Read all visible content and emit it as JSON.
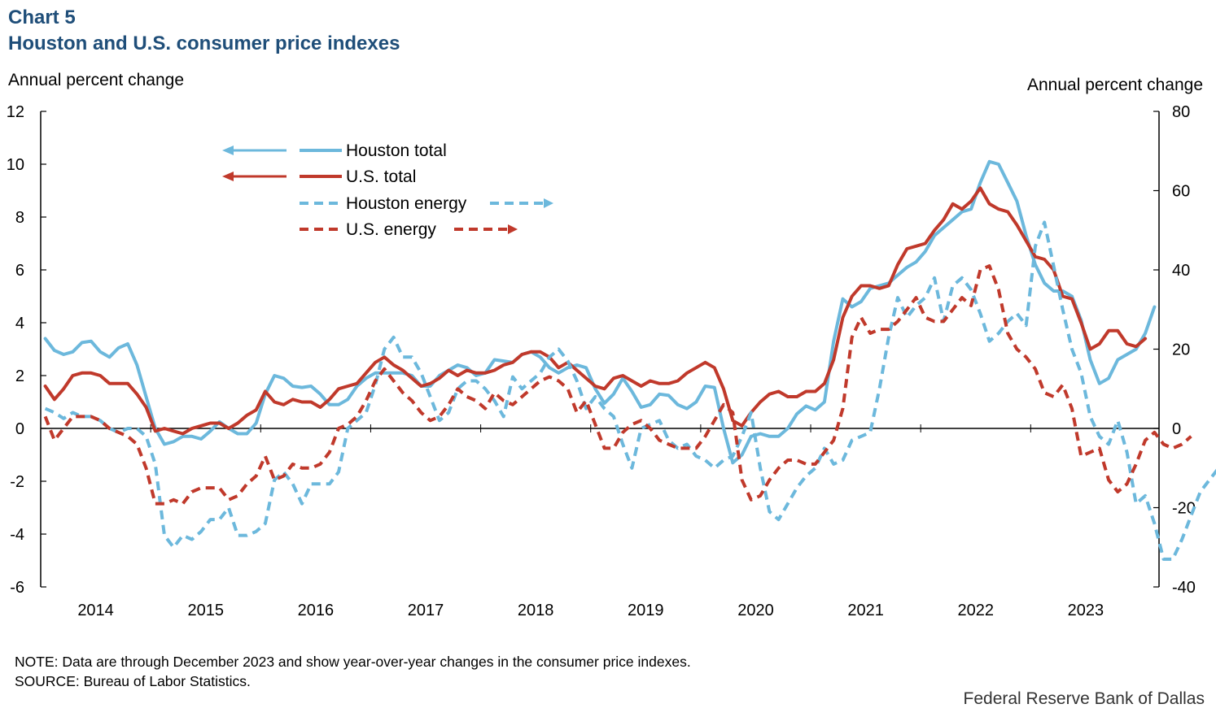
{
  "chart_number": "Chart 5",
  "title": "Houston and U.S. consumer price indexes",
  "left_axis_title": "Annual percent change",
  "right_axis_title": "Annual percent change",
  "note": "NOTE: Data are through December 2023 and show year-over-year changes in the consumer price indexes.",
  "source": "SOURCE: Bureau of Labor Statistics.",
  "brand": "Federal Reserve Bank of Dallas",
  "colors": {
    "houston": "#6cb8dc",
    "us": "#c0392b",
    "axis": "#000000"
  },
  "chart_data": {
    "type": "line",
    "x_start": "2014-01",
    "x_end": "2023-12",
    "x_labels": [
      "2014",
      "2015",
      "2016",
      "2017",
      "2018",
      "2019",
      "2020",
      "2021",
      "2022",
      "2023"
    ],
    "left_axis": {
      "ylim": [
        -6,
        12
      ],
      "ticks": [
        "12",
        "10",
        "8",
        "6",
        "4",
        "2",
        "0",
        "-2",
        "-4",
        "-6"
      ]
    },
    "right_axis": {
      "ylim": [
        -40,
        80
      ],
      "ticks": [
        "80",
        "60",
        "40",
        "20",
        "0",
        "-20",
        "-40"
      ]
    },
    "legend": [
      {
        "label": "Houston total",
        "arrow": "left"
      },
      {
        "label": "U.S. total",
        "arrow": "left"
      },
      {
        "label": "Houston energy",
        "arrow": "right"
      },
      {
        "label": "U.S. energy",
        "arrow": "right"
      }
    ],
    "series": [
      {
        "name": "Houston total",
        "axis": "left",
        "style": "solid",
        "color": "houston",
        "values": [
          3.4,
          2.95,
          2.8,
          2.9,
          3.25,
          3.3,
          2.9,
          2.7,
          3.05,
          3.2,
          2.4,
          1.2,
          0,
          -0.6,
          -0.5,
          -0.3,
          -0.3,
          -0.4,
          -0.1,
          0.25,
          0,
          -0.2,
          -0.2,
          0.2,
          1.3,
          2.0,
          1.9,
          1.6,
          1.55,
          1.6,
          1.3,
          0.9,
          0.9,
          1.1,
          1.6,
          1.9,
          2.1,
          2.1,
          2.1,
          2.1,
          2.0,
          1.6,
          1.6,
          2.0,
          2.2,
          2.4,
          2.3,
          2.0,
          2.1,
          2.6,
          2.55,
          2.5,
          2.8,
          2.9,
          2.7,
          2.3,
          2.1,
          2.3,
          2.4,
          2.3,
          1.5,
          0.95,
          1.3,
          1.9,
          1.4,
          0.8,
          0.9,
          1.3,
          1.25,
          0.9,
          0.75,
          1.0,
          1.6,
          1.55,
          0,
          -1.3,
          -1.0,
          -0.3,
          -0.2,
          -0.3,
          -0.3,
          0,
          0.55,
          0.85,
          0.7,
          1.0,
          3.3,
          4.9,
          4.6,
          4.8,
          5.3,
          5.4,
          5.5,
          5.8,
          6.1,
          6.3,
          6.7,
          7.3,
          7.6,
          7.9,
          8.2,
          8.3,
          9.3,
          10.1,
          10.0,
          9.3,
          8.6,
          7.3,
          6.2,
          5.5,
          5.2,
          5.2,
          5.0,
          4.1,
          2.6,
          1.7,
          1.9,
          2.6,
          2.8,
          3.0,
          3.6,
          4.6
        ]
      },
      {
        "name": "U.S. total",
        "axis": "left",
        "style": "solid",
        "color": "us",
        "values": [
          1.6,
          1.1,
          1.5,
          2.0,
          2.1,
          2.1,
          2.0,
          1.7,
          1.7,
          1.7,
          1.3,
          0.8,
          -0.1,
          0,
          -0.1,
          -0.2,
          0,
          0.1,
          0.2,
          0.2,
          0,
          0.2,
          0.5,
          0.7,
          1.4,
          1.0,
          0.9,
          1.1,
          1.0,
          1.0,
          0.8,
          1.1,
          1.5,
          1.6,
          1.7,
          2.1,
          2.5,
          2.7,
          2.4,
          2.2,
          1.9,
          1.6,
          1.7,
          1.9,
          2.2,
          2.0,
          2.2,
          2.1,
          2.1,
          2.2,
          2.4,
          2.5,
          2.8,
          2.9,
          2.9,
          2.7,
          2.3,
          2.5,
          2.2,
          1.9,
          1.6,
          1.5,
          1.9,
          2.0,
          1.8,
          1.6,
          1.8,
          1.7,
          1.7,
          1.8,
          2.1,
          2.3,
          2.5,
          2.3,
          1.5,
          0.3,
          0.1,
          0.6,
          1.0,
          1.3,
          1.4,
          1.2,
          1.2,
          1.4,
          1.4,
          1.7,
          2.6,
          4.2,
          5.0,
          5.4,
          5.4,
          5.3,
          5.4,
          6.2,
          6.8,
          6.9,
          7.0,
          7.5,
          7.9,
          8.5,
          8.3,
          8.6,
          9.1,
          8.5,
          8.3,
          8.2,
          7.7,
          7.1,
          6.5,
          6.4,
          6.0,
          5.0,
          4.9,
          4.0,
          3.0,
          3.2,
          3.7,
          3.7,
          3.2,
          3.1,
          3.4
        ]
      },
      {
        "name": "Houston energy",
        "axis": "right",
        "style": "dashed",
        "color": "houston",
        "values": [
          5,
          4,
          2.5,
          4,
          3,
          3,
          2,
          0,
          -1,
          0,
          0,
          -2,
          -9,
          -27,
          -30,
          -27,
          -28,
          -26,
          -23,
          -23,
          -20,
          -27,
          -27,
          -26,
          -24,
          -13,
          -11,
          -14,
          -19,
          -14,
          -14,
          -14,
          -11,
          0,
          2,
          4,
          11,
          20,
          23,
          18,
          18,
          14,
          8,
          2,
          4,
          10,
          12,
          12,
          10,
          7,
          3,
          13,
          10,
          12,
          14,
          18,
          20,
          17,
          12,
          5,
          8,
          5,
          3,
          -4,
          -10,
          0,
          1,
          2,
          -3,
          -5,
          -4,
          -7,
          -8,
          -10,
          -8,
          -7,
          -2,
          4,
          -10,
          -21,
          -23,
          -19,
          -15,
          -12,
          -10,
          -5,
          -9,
          -8,
          -3,
          -2,
          -1,
          10,
          23,
          33,
          28,
          31,
          33,
          38,
          27,
          36,
          38,
          35,
          29,
          22,
          24,
          27,
          29,
          26,
          46,
          52,
          41,
          30,
          20,
          14,
          3,
          -2,
          -4,
          2,
          -6,
          -19,
          -17,
          -24,
          -33,
          -33,
          -28,
          -22,
          -16,
          -13,
          -10,
          -8,
          -6,
          -5
        ]
      },
      {
        "name": "U.S. energy",
        "axis": "right",
        "style": "dashed",
        "color": "us",
        "values": [
          3,
          -3,
          0,
          3,
          3,
          3,
          2,
          0,
          -1,
          -2,
          -4,
          -10,
          -19,
          -19,
          -18,
          -19,
          -16,
          -15,
          -15,
          -15,
          -18,
          -17,
          -14,
          -12,
          -7,
          -13,
          -12,
          -9,
          -10,
          -10,
          -9,
          -6,
          0,
          1,
          3,
          7,
          12,
          15,
          12,
          9,
          7,
          4,
          2,
          3,
          6,
          10,
          8,
          7,
          5,
          9,
          7,
          6,
          8,
          10,
          12,
          13,
          12,
          10,
          4,
          7,
          1,
          -5,
          -5,
          -1,
          1,
          2,
          0,
          -3,
          -4,
          -5,
          -5,
          -5,
          -2,
          2,
          6,
          4,
          -13,
          -18,
          -17,
          -13,
          -10,
          -8,
          -8,
          -9,
          -9,
          -6,
          -3,
          5,
          23,
          28,
          24,
          25,
          25,
          27,
          30,
          33,
          28,
          27,
          27,
          30,
          33,
          31,
          40,
          41,
          35,
          24,
          20,
          18,
          15,
          9,
          8,
          11,
          5,
          -7,
          -6,
          -5,
          -13,
          -16,
          -14,
          -9,
          -3,
          -1,
          -4,
          -5,
          -4,
          -2
        ]
      }
    ]
  }
}
